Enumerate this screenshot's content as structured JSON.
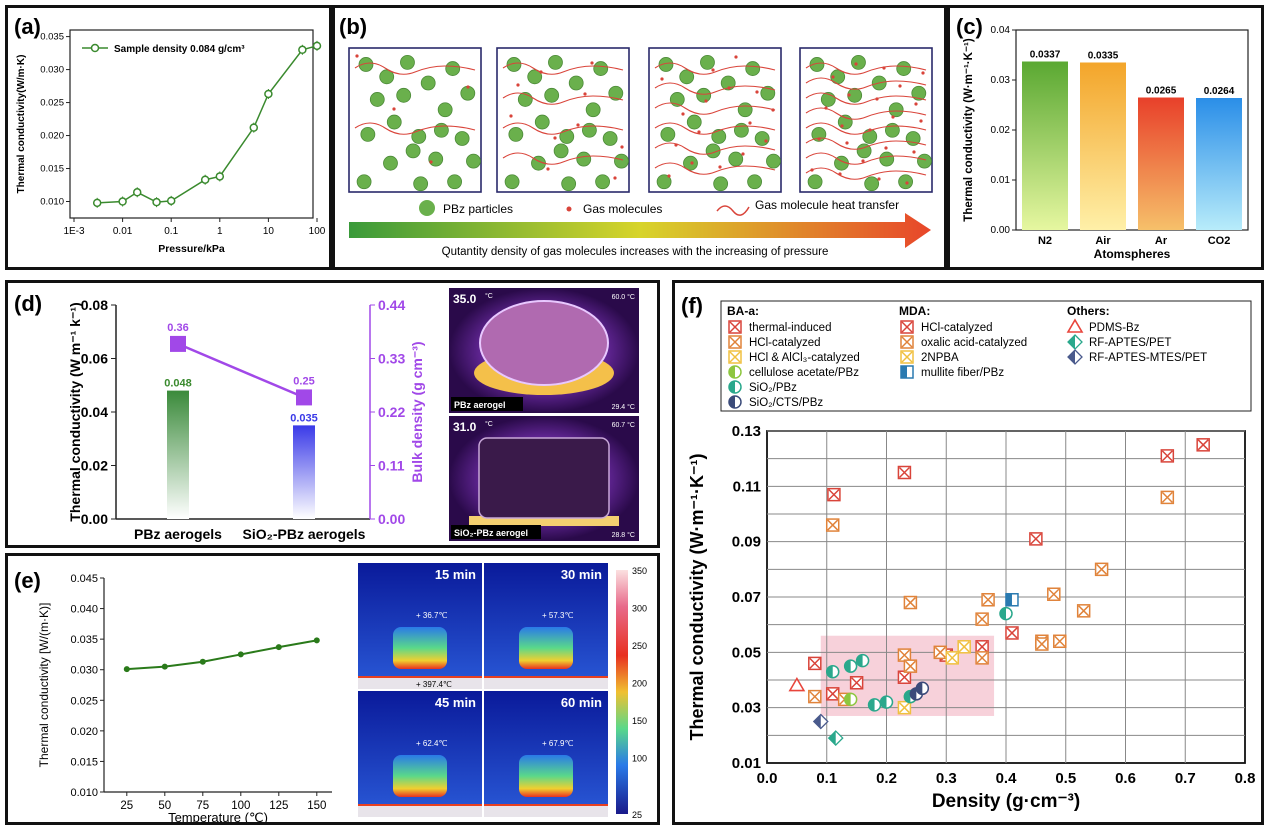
{
  "panels": {
    "a": {
      "label": "(a)"
    },
    "b": {
      "label": "(b)"
    },
    "c": {
      "label": "(c)"
    },
    "d": {
      "label": "(d)"
    },
    "e": {
      "label": "(e)"
    },
    "f": {
      "label": "(f)"
    }
  },
  "colors": {
    "green": "#3a8a2e",
    "red": "#d9443a",
    "orange": "#e0833a",
    "yellow": "#f0c040",
    "teal": "#2aa88c",
    "purple": "#a148e8",
    "blue": "#3a3ae8",
    "navy": "#4a5a8c"
  },
  "schematic": {
    "legend_particles": "PBz particles",
    "legend_gas": "Gas molecules",
    "legend_transfer": "Gas molecule heat transfer",
    "arrow_caption": "Qutantity density of gas molecules increases with the increasing of pressure"
  },
  "thermal_images_d": [
    {
      "label": "PBz aerogel",
      "temp_top": "35.0",
      "unit": "°C",
      "max": "60.0 °C",
      "min": "29.4 °C"
    },
    {
      "label": "SiO₂-PBz aerogel",
      "temp_top": "31.0",
      "unit": "°C",
      "max": "60.7 °C",
      "min": "28.8 °C"
    }
  ],
  "thermal_images_e": {
    "frames": [
      {
        "time": "15 min",
        "top_temp": "36.7℃",
        "bottom_temp": "397.4℃"
      },
      {
        "time": "30 min",
        "top_temp": "57.3℃"
      },
      {
        "time": "45 min",
        "top_temp": "62.4℃"
      },
      {
        "time": "60 min",
        "top_temp": "67.9℃"
      }
    ],
    "colorbar_ticks": [
      "350",
      "300",
      "250",
      "200",
      "150",
      "100",
      "25"
    ]
  },
  "chart_data": [
    {
      "id": "a",
      "type": "line",
      "xscale": "log",
      "x": [
        0.003,
        0.01,
        0.02,
        0.05,
        0.1,
        0.5,
        1,
        5,
        10,
        50,
        100
      ],
      "y": [
        0.0098,
        0.01,
        0.0114,
        0.0099,
        0.0101,
        0.0133,
        0.0138,
        0.0212,
        0.0263,
        0.033,
        0.0336
      ],
      "series_name": "Sample density 0.084 g/cm³",
      "xlabel": "Pressure/kPa",
      "ylabel": "Thermal conductivity(W/m·K)",
      "xticks": [
        "1E-3",
        "0.01",
        "0.1",
        "1",
        "10",
        "100"
      ],
      "yticks": [
        "0.010",
        "0.015",
        "0.020",
        "0.025",
        "0.030",
        "0.035"
      ],
      "ylim": [
        0.0075,
        0.036
      ]
    },
    {
      "id": "c",
      "type": "bar",
      "categories": [
        "N2",
        "Air",
        "Ar",
        "CO2"
      ],
      "values": [
        0.0337,
        0.0335,
        0.0265,
        0.0264
      ],
      "value_labels": [
        "0.0337",
        "0.0335",
        "0.0265",
        "0.0264"
      ],
      "xlabel": "Atomspheres",
      "ylabel": "Thermal conductivity (W·m⁻¹·K⁻¹)",
      "yticks": [
        "0.00",
        "0.01",
        "0.02",
        "0.03",
        "0.04"
      ],
      "ylim": [
        0,
        0.04
      ]
    },
    {
      "id": "d",
      "type": "bar",
      "categories": [
        "PBz  aerogels",
        "SiO₂-PBz  aerogels"
      ],
      "conductivity": [
        0.048,
        0.035
      ],
      "conductivity_labels": [
        "0.048",
        "0.035"
      ],
      "density": [
        0.36,
        0.25
      ],
      "density_labels": [
        "0.36",
        "0.25"
      ],
      "ylabel_left": "Thermal conductivity (W m⁻¹ k⁻¹)",
      "ylabel_right": "Bulk density (g cm⁻³)",
      "yticks_left": [
        "0.00",
        "0.02",
        "0.04",
        "0.06",
        "0.08"
      ],
      "yticks_right": [
        "0.00",
        "0.11",
        "0.22",
        "0.33",
        "0.44"
      ],
      "ylim_left": [
        0,
        0.08
      ],
      "ylim_right": [
        0,
        0.44
      ]
    },
    {
      "id": "e",
      "type": "line",
      "x": [
        25,
        50,
        75,
        100,
        125,
        150
      ],
      "y": [
        0.0301,
        0.0305,
        0.0313,
        0.0325,
        0.0337,
        0.0348
      ],
      "xlabel": "Temperature (℃)",
      "ylabel": "Thermal conductivity [W/(m·K)]",
      "xticks": [
        "25",
        "50",
        "75",
        "100",
        "125",
        "150"
      ],
      "yticks": [
        "0.010",
        "0.015",
        "0.020",
        "0.025",
        "0.030",
        "0.035",
        "0.040",
        "0.045"
      ],
      "ylim": [
        0.01,
        0.045
      ],
      "xlim": [
        10,
        160
      ]
    },
    {
      "id": "f",
      "type": "scatter",
      "xlabel": "Density (g·cm⁻³)",
      "ylabel": "Thermal conductivity (W·m⁻¹·K⁻¹)",
      "xticks": [
        "0.0",
        "0.1",
        "0.2",
        "0.3",
        "0.4",
        "0.5",
        "0.6",
        "0.7",
        "0.8"
      ],
      "yticks": [
        "0.01",
        "0.03",
        "0.05",
        "0.07",
        "0.09",
        "0.11",
        "0.13"
      ],
      "xlim": [
        0,
        0.8
      ],
      "ylim": [
        0.01,
        0.13
      ],
      "highlight_region": {
        "x": [
          0.09,
          0.38
        ],
        "y": [
          0.027,
          0.056
        ]
      },
      "legend_groups": [
        {
          "title": "BA-a:",
          "items": [
            "thermal-induced",
            "HCl-catalyzed",
            "HCl & AlCl₃-catalyzed",
            "cellulose acetate/PBz",
            "SiO₂/PBz",
            "SiO₂/CTS/PBz"
          ]
        },
        {
          "title": "MDA:",
          "items": [
            "HCl-catalyzed",
            "oxalic acid-catalyzed",
            "2NPBA",
            "mullite fiber/PBz"
          ]
        },
        {
          "title": "Others:",
          "items": [
            "PDMS-Bz",
            "RF-APTES/PET",
            "RF-APTES-MTES/PET"
          ]
        }
      ],
      "series": [
        {
          "name": "BA-a thermal-induced",
          "marker": "xbox",
          "color": "#d9443a",
          "points": [
            [
              0.08,
              0.046
            ],
            [
              0.11,
              0.035
            ],
            [
              0.112,
              0.107
            ],
            [
              0.15,
              0.039
            ],
            [
              0.23,
              0.115
            ],
            [
              0.23,
              0.041
            ],
            [
              0.45,
              0.091
            ],
            [
              0.41,
              0.057
            ],
            [
              0.36,
              0.052
            ],
            [
              0.67,
              0.121
            ],
            [
              0.73,
              0.125
            ],
            [
              0.3,
              0.049
            ]
          ]
        },
        {
          "name": "BA-a HCl-catalyzed",
          "marker": "xbox",
          "color": "#e0833a",
          "points": [
            [
              0.08,
              0.034
            ],
            [
              0.11,
              0.096
            ],
            [
              0.13,
              0.033
            ],
            [
              0.24,
              0.068
            ],
            [
              0.23,
              0.049
            ],
            [
              0.24,
              0.045
            ],
            [
              0.29,
              0.05
            ],
            [
              0.36,
              0.062
            ],
            [
              0.37,
              0.069
            ],
            [
              0.36,
              0.048
            ],
            [
              0.46,
              0.054
            ],
            [
              0.46,
              0.053
            ],
            [
              0.48,
              0.071
            ],
            [
              0.49,
              0.054
            ],
            [
              0.53,
              0.065
            ],
            [
              0.56,
              0.08
            ],
            [
              0.67,
              0.106
            ]
          ]
        },
        {
          "name": "BA-a HCl & AlCl3-catalyzed",
          "marker": "xbox",
          "color": "#f0c040",
          "points": [
            [
              0.23,
              0.03
            ],
            [
              0.33,
              0.052
            ],
            [
              0.31,
              0.048
            ]
          ]
        },
        {
          "name": "cellulose acetate/PBz",
          "marker": "halfcircle",
          "color": "#8dc63f",
          "points": [
            [
              0.14,
              0.033
            ],
            [
              0.24,
              0.034
            ]
          ]
        },
        {
          "name": "SiO2/PBz",
          "marker": "halfcircle",
          "color": "#2aa88c",
          "points": [
            [
              0.11,
              0.043
            ],
            [
              0.14,
              0.045
            ],
            [
              0.16,
              0.047
            ],
            [
              0.18,
              0.031
            ],
            [
              0.2,
              0.032
            ],
            [
              0.24,
              0.034
            ],
            [
              0.4,
              0.064
            ]
          ]
        },
        {
          "name": "SiO2/CTS/PBz",
          "marker": "halfcircle",
          "color": "#3b4b7a",
          "points": [
            [
              0.25,
              0.035
            ],
            [
              0.26,
              0.037
            ]
          ]
        },
        {
          "name": "mullite fiber/PBz",
          "marker": "halfsquare",
          "color": "#2a7ab0",
          "points": [
            [
              0.41,
              0.069
            ]
          ]
        },
        {
          "name": "PDMS-Bz",
          "marker": "triangle",
          "color": "#e8453c",
          "points": [
            [
              0.05,
              0.038
            ]
          ]
        },
        {
          "name": "RF-APTES/PET",
          "marker": "diamond",
          "color": "#2aa88c",
          "points": [
            [
              0.115,
              0.019
            ]
          ]
        },
        {
          "name": "RF-APTES-MTES/PET",
          "marker": "diamond",
          "color": "#4a5a8c",
          "points": [
            [
              0.09,
              0.025
            ]
          ]
        }
      ]
    }
  ]
}
